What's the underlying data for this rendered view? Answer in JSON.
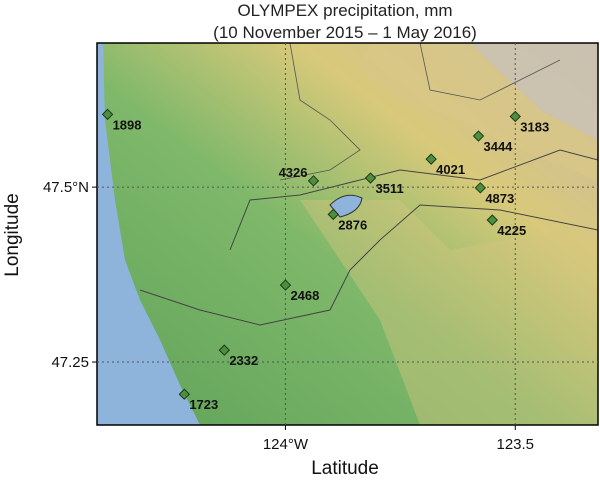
{
  "chart_data": {
    "type": "scatter",
    "title": "OLYMPEX precipitation, mm",
    "subtitle": "(10 November 2015 – 1 May 2016)",
    "x_label": "Latitude",
    "y_label": "Longitude",
    "xlim": [
      124.41,
      123.32
    ],
    "ylim": [
      47.16,
      47.706
    ],
    "xticks": [
      {
        "value": 124,
        "label": "124°W"
      },
      123.5
    ],
    "yticks": [
      {
        "value": 47.5,
        "label": "47.5°N"
      },
      47.25
    ],
    "grid": true,
    "color": "#4e8f3e",
    "x": [
      124.387,
      123.939,
      123.815,
      123.896,
      123.683,
      123.58,
      123.5,
      123.576,
      123.55,
      124.0,
      124.133,
      124.22
    ],
    "y": [
      47.604,
      47.509,
      47.513,
      47.461,
      47.54,
      47.573,
      47.601,
      47.499,
      47.453,
      47.36,
      47.267,
      47.204
    ],
    "values": [
      1898,
      4326,
      3511,
      2876,
      4021,
      3444,
      3183,
      4873,
      4225,
      2468,
      2332,
      1723
    ]
  }
}
